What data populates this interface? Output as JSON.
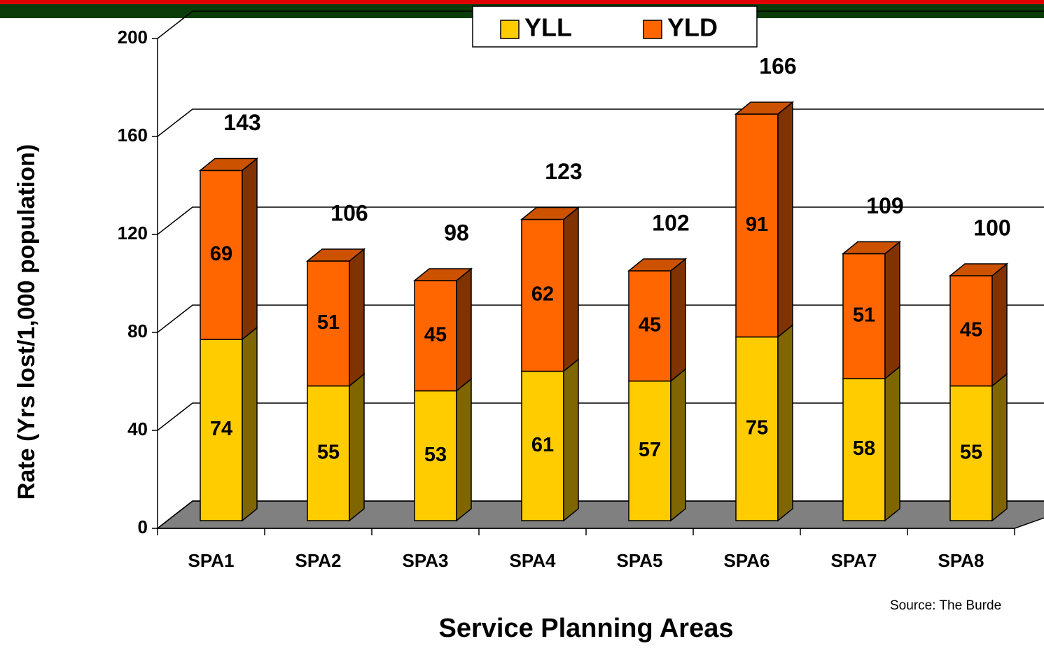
{
  "chart_data": {
    "type": "bar3d-stacked",
    "y_label": "Rate (Yrs lost/1,000 population)",
    "x_label": "Service Planning Areas",
    "source": "Source: The Burde",
    "categories": [
      "SPA1",
      "SPA2",
      "SPA3",
      "SPA4",
      "SPA5",
      "SPA6",
      "SPA7",
      "SPA8"
    ],
    "series": [
      {
        "name": "YLL",
        "color": "#FFCC00",
        "values": [
          74,
          55,
          53,
          61,
          57,
          75,
          58,
          55
        ]
      },
      {
        "name": "YLD",
        "color": "#FF6600",
        "values": [
          69,
          51,
          45,
          62,
          45,
          91,
          51,
          45
        ]
      }
    ],
    "totals": [
      143,
      106,
      98,
      123,
      102,
      166,
      109,
      100
    ],
    "ylim": [
      0,
      200
    ],
    "yticks": [
      0,
      40,
      80,
      120,
      160,
      200
    ],
    "grid": true,
    "legend": "top"
  }
}
